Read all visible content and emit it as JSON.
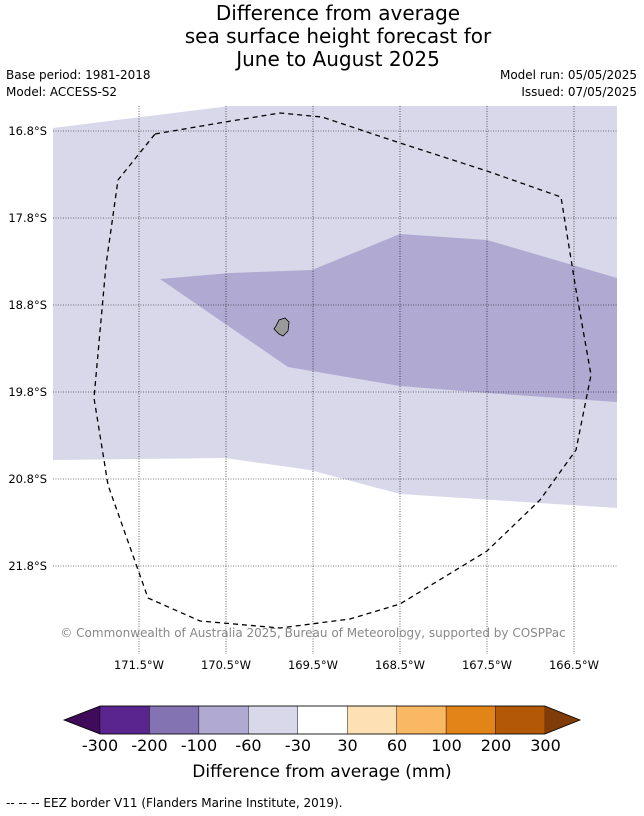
{
  "title": {
    "line1": "Difference from average",
    "line2": "sea surface height forecast for",
    "line3": "June to August 2025"
  },
  "meta": {
    "base_period": "Base period: 1981-2018",
    "model": "Model: ACCESS-S2",
    "model_run": "Model run: 05/05/2025",
    "issued": "Issued: 07/05/2025"
  },
  "map": {
    "lat_labels": [
      "16.8°S",
      "17.8°S",
      "18.8°S",
      "19.8°S",
      "20.8°S",
      "21.8°S"
    ],
    "lon_labels": [
      "171.5°W",
      "170.5°W",
      "169.5°W",
      "168.5°W",
      "167.5°W",
      "166.5°W"
    ],
    "copyright": "© Commonwealth of Australia 2025, Bureau of Meteorology, supported by COSPPac",
    "colors": {
      "light_lavender": "#d8d8ea",
      "medium_lavender": "#b0a9d2",
      "land": "#999999",
      "grid": "#000000"
    }
  },
  "colorbar": {
    "ticks": [
      "-300",
      "-200",
      "-100",
      "-60",
      "-30",
      "30",
      "60",
      "100",
      "200",
      "300"
    ],
    "colors": [
      "#3f0b5a",
      "#5b2590",
      "#8373b2",
      "#b0a9d2",
      "#d8d8ea",
      "#ffffff",
      "#fee0b5",
      "#fbb864",
      "#e38419",
      "#b35806",
      "#7f3b08"
    ],
    "title": "Difference from average (mm)"
  },
  "footer": "--  --  -- EEZ border V11 (Flanders Marine Institute, 2019)."
}
